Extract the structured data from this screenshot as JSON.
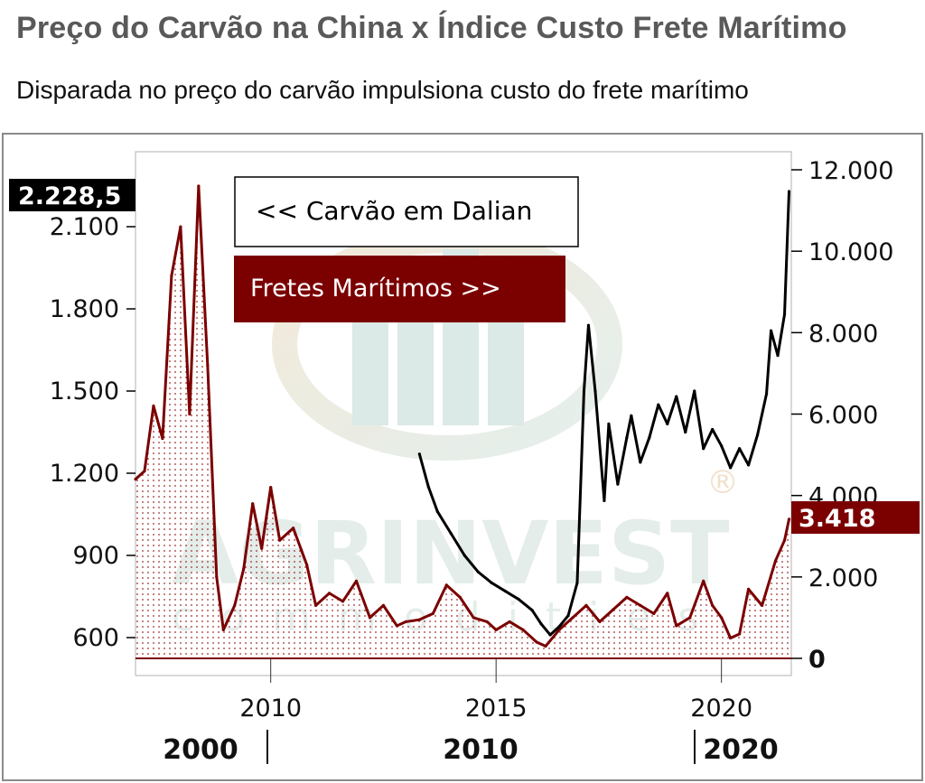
{
  "header": {
    "title": "Preço do Carvão na China x Índice Custo Frete Marítimo",
    "subtitle": "Disparada no preço do carvão impulsiona custo do frete marítimo"
  },
  "chart_data": {
    "type": "line",
    "title": "Preço do Carvão na China x Índice Custo Frete Marítimo",
    "subtitle": "Disparada no preço do carvão impulsiona custo do frete marítimo",
    "legend": [
      {
        "label": "<< Carvão em Dalian",
        "color": "#000000",
        "axis": "right",
        "placement": "top-left"
      },
      {
        "label": "Fretes Marítimos >>",
        "color": "#7b0000",
        "axis": "left",
        "placement": "top-left"
      }
    ],
    "x_axis_top_ticks": [
      "2010",
      "2015",
      "2020"
    ],
    "x_axis_bottom_ticks": [
      "2000",
      "2010",
      "2020"
    ],
    "left_axis": {
      "ticks": [
        "600",
        "900",
        "1.200",
        "1.500",
        "1.800",
        "2.100"
      ],
      "range": [
        550,
        2300
      ]
    },
    "right_axis": {
      "ticks": [
        "0",
        "2.000",
        "4.000",
        "6.000",
        "8.000",
        "10.000",
        "12.000"
      ],
      "range": [
        0,
        12000
      ]
    },
    "last_value_labels": {
      "left": "2.228,5",
      "right": "3.418"
    },
    "watermark": {
      "brand": "AGRINVEST",
      "tagline": "commodities",
      "mark": "®"
    },
    "series": [
      {
        "name": "Carvão em Dalian",
        "axis": "left",
        "color": "#000000",
        "points": [
          [
            2013.3,
            1270
          ],
          [
            2013.5,
            1150
          ],
          [
            2013.7,
            1060
          ],
          [
            2014.0,
            980
          ],
          [
            2014.3,
            900
          ],
          [
            2014.6,
            840
          ],
          [
            2014.9,
            800
          ],
          [
            2015.2,
            770
          ],
          [
            2015.5,
            740
          ],
          [
            2015.8,
            700
          ],
          [
            2016.0,
            650
          ],
          [
            2016.2,
            610
          ],
          [
            2016.4,
            640
          ],
          [
            2016.6,
            680
          ],
          [
            2016.8,
            800
          ],
          [
            2016.95,
            1500
          ],
          [
            2017.05,
            1740
          ],
          [
            2017.2,
            1500
          ],
          [
            2017.4,
            1100
          ],
          [
            2017.5,
            1380
          ],
          [
            2017.7,
            1160
          ],
          [
            2017.9,
            1330
          ],
          [
            2018.0,
            1410
          ],
          [
            2018.2,
            1240
          ],
          [
            2018.4,
            1330
          ],
          [
            2018.6,
            1450
          ],
          [
            2018.8,
            1380
          ],
          [
            2019.0,
            1480
          ],
          [
            2019.2,
            1350
          ],
          [
            2019.4,
            1500
          ],
          [
            2019.6,
            1290
          ],
          [
            2019.8,
            1360
          ],
          [
            2020.0,
            1300
          ],
          [
            2020.2,
            1220
          ],
          [
            2020.4,
            1290
          ],
          [
            2020.6,
            1230
          ],
          [
            2020.8,
            1340
          ],
          [
            2021.0,
            1490
          ],
          [
            2021.1,
            1720
          ],
          [
            2021.25,
            1630
          ],
          [
            2021.4,
            1780
          ],
          [
            2021.5,
            2228.5
          ]
        ]
      },
      {
        "name": "Fretes Marítimos",
        "axis": "right",
        "color": "#7b0000",
        "points": [
          [
            2007.0,
            4400
          ],
          [
            2007.2,
            4600
          ],
          [
            2007.4,
            6200
          ],
          [
            2007.6,
            5400
          ],
          [
            2007.8,
            9400
          ],
          [
            2008.0,
            10600
          ],
          [
            2008.2,
            6000
          ],
          [
            2008.4,
            11600
          ],
          [
            2008.6,
            7200
          ],
          [
            2008.8,
            2000
          ],
          [
            2008.95,
            700
          ],
          [
            2009.2,
            1300
          ],
          [
            2009.4,
            2200
          ],
          [
            2009.6,
            3800
          ],
          [
            2009.8,
            2700
          ],
          [
            2010.0,
            4200
          ],
          [
            2010.2,
            2900
          ],
          [
            2010.5,
            3200
          ],
          [
            2010.8,
            2300
          ],
          [
            2011.0,
            1300
          ],
          [
            2011.3,
            1600
          ],
          [
            2011.6,
            1400
          ],
          [
            2011.9,
            1900
          ],
          [
            2012.2,
            1000
          ],
          [
            2012.5,
            1300
          ],
          [
            2012.8,
            800
          ],
          [
            2013.0,
            900
          ],
          [
            2013.3,
            950
          ],
          [
            2013.6,
            1100
          ],
          [
            2013.9,
            1800
          ],
          [
            2014.2,
            1500
          ],
          [
            2014.5,
            1000
          ],
          [
            2014.8,
            900
          ],
          [
            2015.0,
            700
          ],
          [
            2015.3,
            900
          ],
          [
            2015.6,
            700
          ],
          [
            2015.9,
            400
          ],
          [
            2016.1,
            300
          ],
          [
            2016.4,
            700
          ],
          [
            2016.7,
            1000
          ],
          [
            2017.0,
            1300
          ],
          [
            2017.3,
            900
          ],
          [
            2017.6,
            1200
          ],
          [
            2017.9,
            1500
          ],
          [
            2018.2,
            1300
          ],
          [
            2018.5,
            1100
          ],
          [
            2018.8,
            1600
          ],
          [
            2019.0,
            800
          ],
          [
            2019.3,
            1000
          ],
          [
            2019.6,
            1900
          ],
          [
            2019.8,
            1300
          ],
          [
            2020.0,
            1000
          ],
          [
            2020.2,
            500
          ],
          [
            2020.4,
            600
          ],
          [
            2020.6,
            1700
          ],
          [
            2020.9,
            1300
          ],
          [
            2021.2,
            2400
          ],
          [
            2021.4,
            2900
          ],
          [
            2021.5,
            3418
          ]
        ]
      }
    ]
  }
}
